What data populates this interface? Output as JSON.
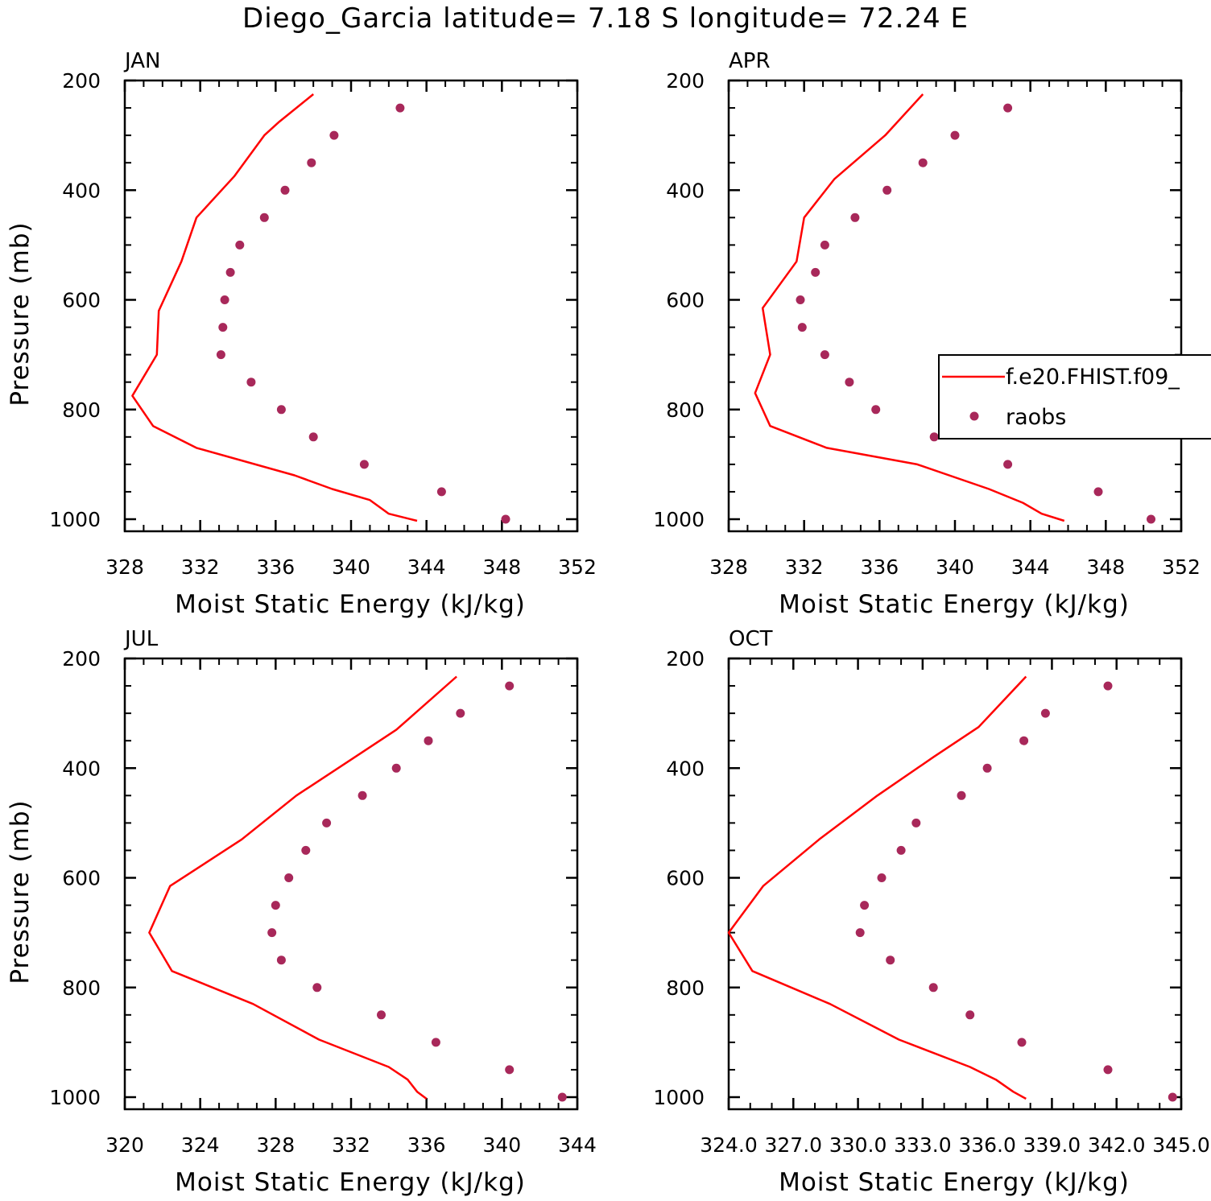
{
  "title": "Diego_Garcia  latitude= 7.18 S longitude= 72.24 E",
  "colors": {
    "model_line": "#ff0000",
    "raobs_marker": "#a8285a",
    "axes": "#000000"
  },
  "legend": {
    "placement": "right-middle of APR panel",
    "entries": [
      {
        "label": "f.e20.FHIST.f09_",
        "marker": "line"
      },
      {
        "label": "raobs",
        "marker": "dot"
      }
    ]
  },
  "chart_data": [
    {
      "type": "line",
      "panel_title": "JAN",
      "xlabel": "Moist Static Energy (kJ/kg)",
      "ylabel": "Pressure (mb)",
      "xlim": [
        328,
        352
      ],
      "ylim": [
        1000,
        200
      ],
      "x_ticks": [
        "328",
        "332",
        "336",
        "340",
        "344",
        "348",
        "352"
      ],
      "y_ticks": [
        "200",
        "400",
        "600",
        "800",
        "1000"
      ],
      "series": [
        {
          "name": "f.e20.FHIST.f09_",
          "kind": "line",
          "points": [
            [
              338.0,
              225
            ],
            [
              336.2,
              275
            ],
            [
              335.4,
              300
            ],
            [
              333.8,
              375
            ],
            [
              331.8,
              450
            ],
            [
              331.0,
              530
            ],
            [
              329.8,
              620
            ],
            [
              329.7,
              700
            ],
            [
              328.4,
              775
            ],
            [
              329.5,
              830
            ],
            [
              331.8,
              870
            ],
            [
              337.0,
              920
            ],
            [
              339.0,
              945
            ],
            [
              341.0,
              965
            ],
            [
              342.0,
              990
            ],
            [
              343.5,
              1003
            ]
          ]
        },
        {
          "name": "raobs",
          "kind": "scatter",
          "points": [
            [
              342.6,
              250
            ],
            [
              339.1,
              300
            ],
            [
              337.9,
              350
            ],
            [
              336.5,
              400
            ],
            [
              335.4,
              450
            ],
            [
              334.1,
              500
            ],
            [
              333.6,
              550
            ],
            [
              333.3,
              600
            ],
            [
              333.2,
              650
            ],
            [
              333.1,
              700
            ],
            [
              334.7,
              750
            ],
            [
              336.3,
              800
            ],
            [
              338.0,
              850
            ],
            [
              340.7,
              900
            ],
            [
              344.8,
              950
            ],
            [
              348.2,
              1000
            ]
          ]
        }
      ]
    },
    {
      "type": "line",
      "panel_title": "APR",
      "xlabel": "Moist Static Energy (kJ/kg)",
      "ylabel": "",
      "xlim": [
        328,
        352
      ],
      "ylim": [
        1000,
        200
      ],
      "x_ticks": [
        "328",
        "332",
        "336",
        "340",
        "344",
        "348",
        "352"
      ],
      "y_ticks": [
        "200",
        "400",
        "600",
        "800",
        "1000"
      ],
      "series": [
        {
          "name": "f.e20.FHIST.f09_",
          "kind": "line",
          "points": [
            [
              338.3,
              225
            ],
            [
              336.3,
              300
            ],
            [
              333.6,
              380
            ],
            [
              332.0,
              450
            ],
            [
              331.6,
              530
            ],
            [
              329.8,
              615
            ],
            [
              330.2,
              700
            ],
            [
              329.4,
              770
            ],
            [
              330.2,
              830
            ],
            [
              333.2,
              870
            ],
            [
              338.0,
              900
            ],
            [
              341.8,
              945
            ],
            [
              343.6,
              970
            ],
            [
              344.6,
              990
            ],
            [
              345.8,
              1003
            ]
          ]
        },
        {
          "name": "raobs",
          "kind": "scatter",
          "points": [
            [
              342.8,
              250
            ],
            [
              340.0,
              300
            ],
            [
              338.3,
              350
            ],
            [
              336.4,
              400
            ],
            [
              334.7,
              450
            ],
            [
              333.1,
              500
            ],
            [
              332.6,
              550
            ],
            [
              331.8,
              600
            ],
            [
              331.9,
              650
            ],
            [
              333.1,
              700
            ],
            [
              334.4,
              750
            ],
            [
              335.8,
              800
            ],
            [
              338.9,
              850
            ],
            [
              342.8,
              900
            ],
            [
              347.6,
              950
            ],
            [
              350.4,
              1000
            ]
          ]
        }
      ]
    },
    {
      "type": "line",
      "panel_title": "JUL",
      "xlabel": "Moist Static Energy (kJ/kg)",
      "ylabel": "Pressure (mb)",
      "xlim": [
        320,
        344
      ],
      "ylim": [
        1000,
        200
      ],
      "x_ticks": [
        "320",
        "324",
        "328",
        "332",
        "336",
        "340",
        "344"
      ],
      "y_ticks": [
        "200",
        "400",
        "600",
        "800",
        "1000"
      ],
      "series": [
        {
          "name": "f.e20.FHIST.f09_",
          "kind": "line",
          "points": [
            [
              337.6,
              233
            ],
            [
              334.4,
              330
            ],
            [
              332.2,
              380
            ],
            [
              329.1,
              450
            ],
            [
              326.2,
              530
            ],
            [
              322.4,
              615
            ],
            [
              321.3,
              700
            ],
            [
              322.5,
              770
            ],
            [
              326.8,
              830
            ],
            [
              330.3,
              895
            ],
            [
              334.0,
              945
            ],
            [
              335.0,
              968
            ],
            [
              335.5,
              990
            ],
            [
              336.0,
              1003
            ]
          ]
        },
        {
          "name": "raobs",
          "kind": "scatter",
          "points": [
            [
              340.4,
              250
            ],
            [
              337.8,
              300
            ],
            [
              336.1,
              350
            ],
            [
              334.4,
              400
            ],
            [
              332.6,
              450
            ],
            [
              330.7,
              500
            ],
            [
              329.6,
              550
            ],
            [
              328.7,
              600
            ],
            [
              328.0,
              650
            ],
            [
              327.8,
              700
            ],
            [
              328.3,
              750
            ],
            [
              330.2,
              800
            ],
            [
              333.6,
              850
            ],
            [
              336.5,
              900
            ],
            [
              340.4,
              950
            ],
            [
              343.2,
              1000
            ]
          ]
        }
      ]
    },
    {
      "type": "line",
      "panel_title": "OCT",
      "xlabel": "Moist Static Energy (kJ/kg)",
      "ylabel": "",
      "xlim": [
        324,
        345
      ],
      "ylim": [
        1000,
        200
      ],
      "x_ticks": [
        "324.0",
        "327.0",
        "330.0",
        "333.0",
        "336.0",
        "339.0",
        "342.0",
        "345.0"
      ],
      "y_ticks": [
        "200",
        "400",
        "600",
        "800",
        "1000"
      ],
      "series": [
        {
          "name": "f.e20.FHIST.f09_",
          "kind": "line",
          "points": [
            [
              337.8,
              233
            ],
            [
              335.6,
              325
            ],
            [
              333.5,
              380
            ],
            [
              330.9,
              450
            ],
            [
              328.2,
              530
            ],
            [
              325.6,
              615
            ],
            [
              324.0,
              700
            ],
            [
              325.1,
              770
            ],
            [
              328.7,
              830
            ],
            [
              331.9,
              895
            ],
            [
              335.2,
              945
            ],
            [
              336.4,
              968
            ],
            [
              337.2,
              990
            ],
            [
              337.8,
              1003
            ]
          ]
        },
        {
          "name": "raobs",
          "kind": "scatter",
          "points": [
            [
              341.6,
              250
            ],
            [
              338.7,
              300
            ],
            [
              337.7,
              350
            ],
            [
              336.0,
              400
            ],
            [
              334.8,
              450
            ],
            [
              332.7,
              500
            ],
            [
              332.0,
              550
            ],
            [
              331.1,
              600
            ],
            [
              330.3,
              650
            ],
            [
              330.1,
              700
            ],
            [
              331.5,
              750
            ],
            [
              333.5,
              800
            ],
            [
              335.2,
              850
            ],
            [
              337.6,
              900
            ],
            [
              341.6,
              950
            ],
            [
              344.6,
              1000
            ]
          ]
        }
      ]
    }
  ]
}
